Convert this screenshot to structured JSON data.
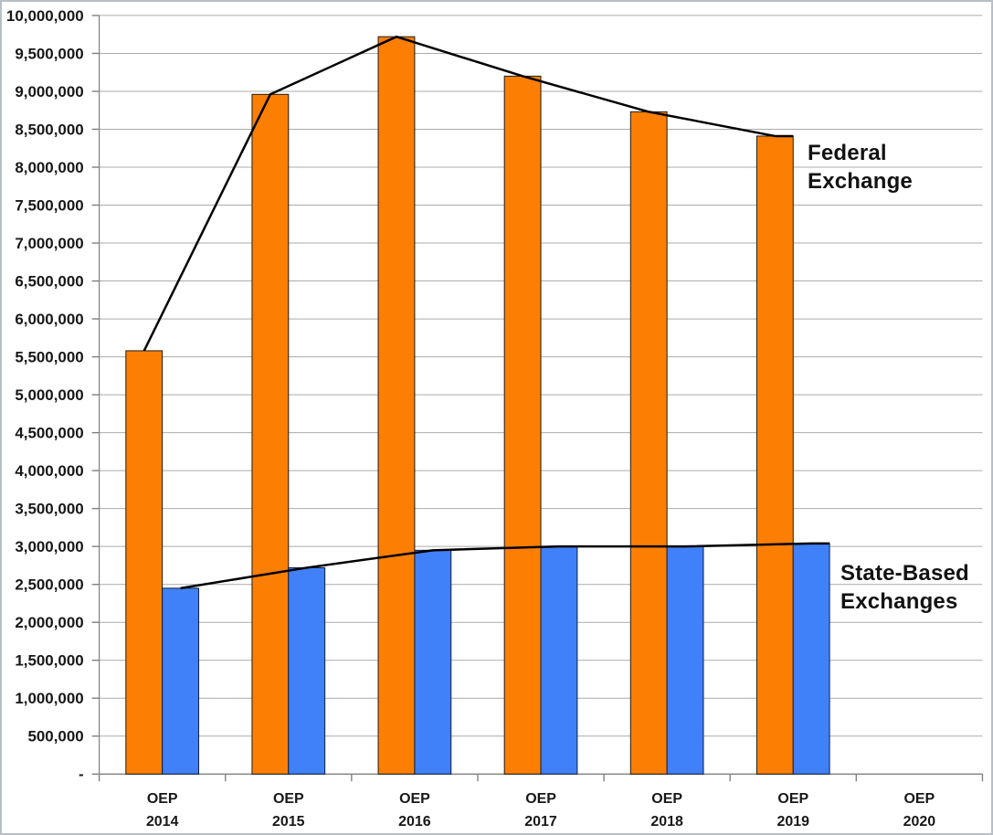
{
  "chart_data": {
    "type": "bar",
    "description": "Grouped bar chart of health exchange plan selections by open enrollment period, with trend lines over each series",
    "categories": [
      "2014",
      "2015",
      "2016",
      "2017",
      "2018",
      "2019",
      "2020"
    ],
    "x_axis": {
      "prefix": "OEP",
      "tick_labels": [
        "OEP 2014",
        "OEP 2015",
        "OEP 2016",
        "OEP 2017",
        "OEP 2018",
        "OEP 2019",
        "OEP 2020"
      ]
    },
    "series": [
      {
        "name": "Federal Exchange",
        "color": "#fc7f04",
        "outline": "#1a1a1a",
        "values": [
          5580000,
          8960000,
          9720000,
          9200000,
          8730000,
          8410000,
          null
        ]
      },
      {
        "name": "State-Based Exchanges",
        "color": "#4080f9",
        "outline": "#10203a",
        "values": [
          2450000,
          2720000,
          2950000,
          3000000,
          3000000,
          3040000,
          null
        ]
      }
    ],
    "y_axis": {
      "min": 0,
      "max": 10000000,
      "tick_step": 500000,
      "tick_labels": [
        "-",
        "500,000",
        "1,000,000",
        "1,500,000",
        "2,000,000",
        "2,500,000",
        "3,000,000",
        "3,500,000",
        "4,000,000",
        "4,500,000",
        "5,000,000",
        "5,500,000",
        "6,000,000",
        "6,500,000",
        "7,000,000",
        "7,500,000",
        "8,000,000",
        "8,500,000",
        "9,000,000",
        "9,500,000",
        "10,000,000"
      ]
    },
    "grid": true,
    "gridline_color": "#ababab",
    "axis_color": "#808080",
    "trend_line_color": "#000000",
    "legend_position": "inline-right",
    "annotations": [
      {
        "id": "federal",
        "lines": [
          "Federal",
          "Exchange"
        ]
      },
      {
        "id": "state",
        "lines": [
          "State-Based",
          "Exchanges"
        ]
      }
    ]
  }
}
